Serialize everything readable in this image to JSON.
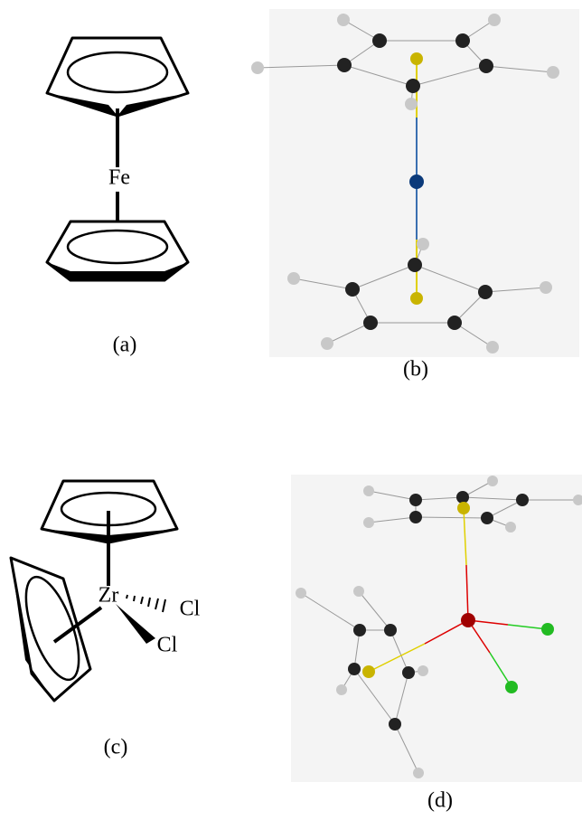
{
  "panels": [
    {
      "label": "(a)",
      "atoms": [
        "Fe"
      ]
    },
    {
      "label": "(b)"
    },
    {
      "label": "(c)",
      "atoms": [
        "Zr",
        "Cl",
        "Cl"
      ]
    },
    {
      "label": "(d)"
    }
  ]
}
